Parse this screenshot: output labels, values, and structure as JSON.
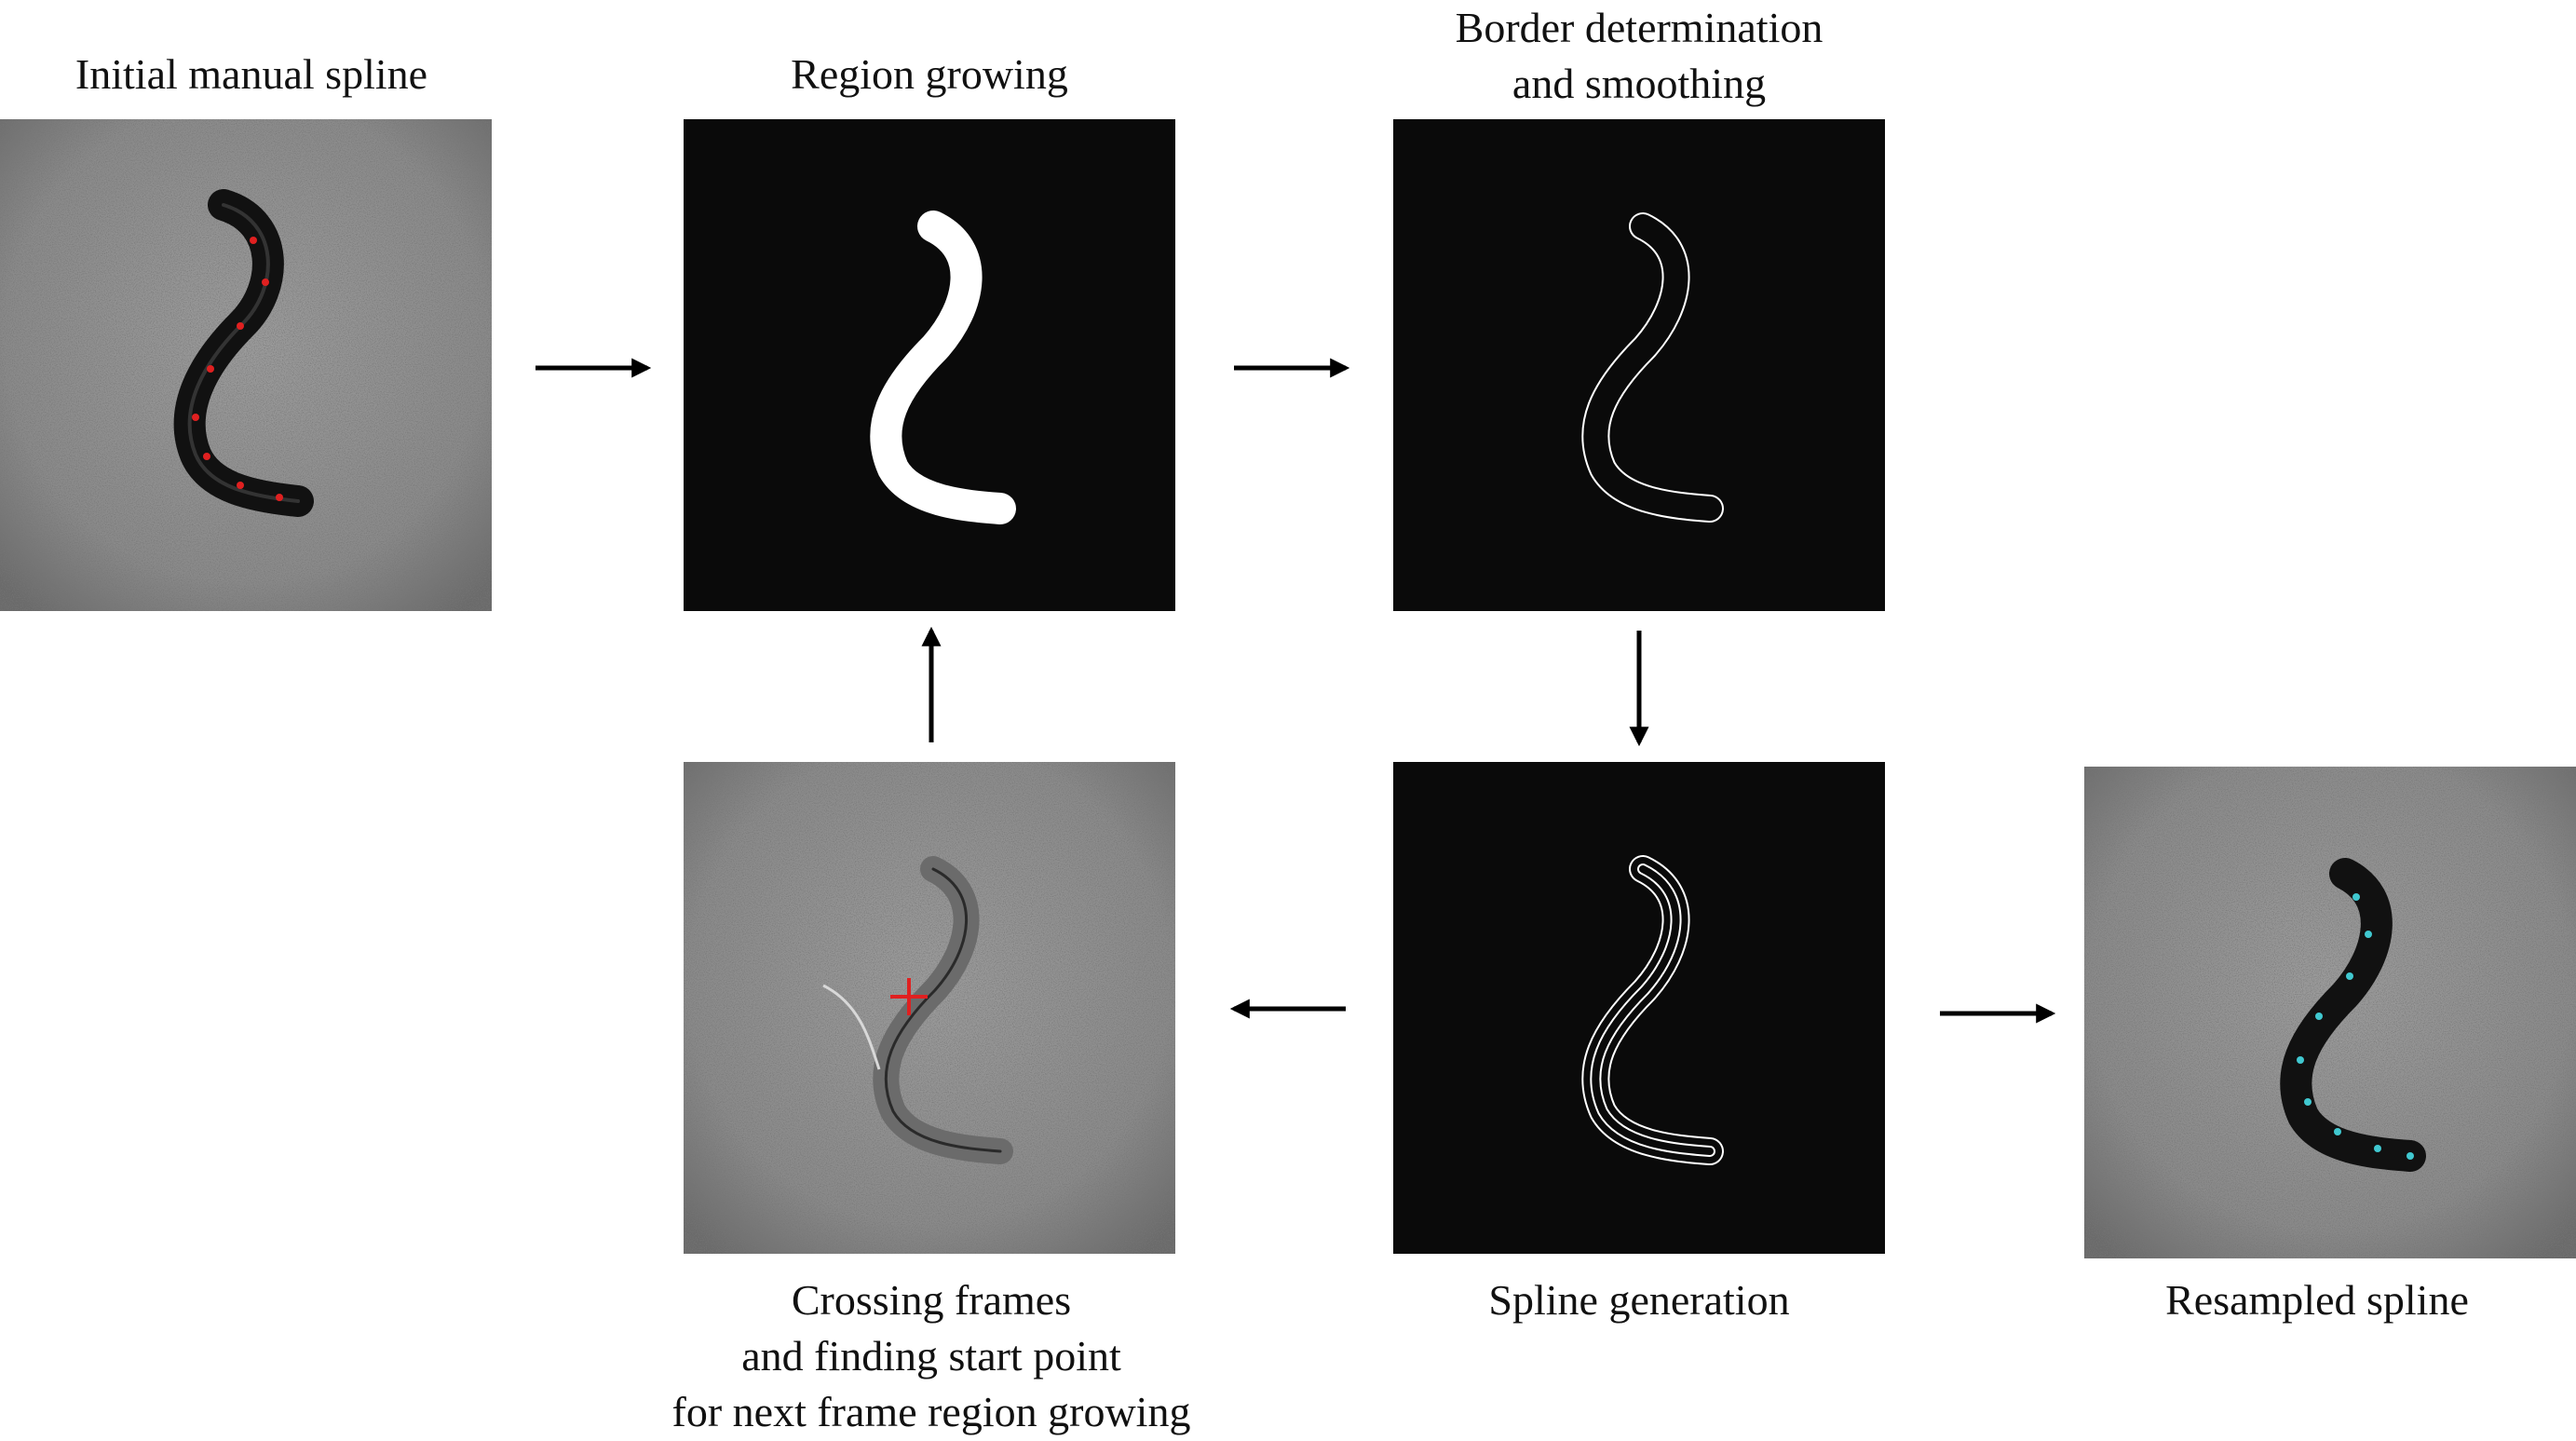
{
  "steps": {
    "initial": {
      "label": "Initial manual spline"
    },
    "region": {
      "label": "Region growing"
    },
    "border": {
      "line1": "Border determination",
      "line2": "and smoothing"
    },
    "spline": {
      "label": "Spline generation"
    },
    "resampled": {
      "label": "Resampled spline"
    },
    "crossing": {
      "line1": "Crossing frames",
      "line2": "and finding start point",
      "line3": "for next frame region growing"
    }
  },
  "colors": {
    "background": "#ffffff",
    "mask_panel": "#0a0a0a",
    "micrograph": "#8f8f8f",
    "manual_points": "#e02020",
    "resampled_points": "#40c8d0",
    "start_cross": "#e02020",
    "arrow": "#000000"
  }
}
